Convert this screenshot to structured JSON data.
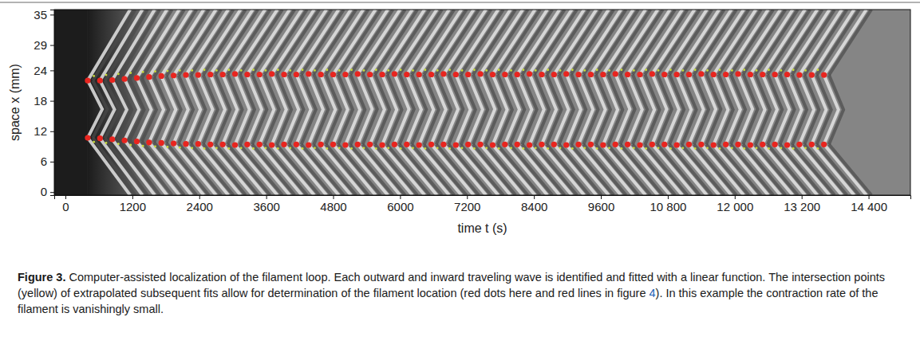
{
  "chart_data": {
    "type": "scatter",
    "x_label": "time t (s)",
    "y_label": "space x (mm)",
    "xlim": [
      -200,
      15150
    ],
    "ylim": [
      -0.6,
      36
    ],
    "xticks": [
      0,
      1200,
      2400,
      3600,
      4800,
      6000,
      7200,
      8400,
      9600,
      {
        "value": 10800,
        "label": "10 800"
      },
      {
        "value": 12000,
        "label": "12 000"
      },
      {
        "value": 13200,
        "label": "13 200"
      },
      {
        "value": 14400,
        "label": "14 400"
      }
    ],
    "yticks": [
      0,
      6,
      12,
      18,
      24,
      29,
      35
    ],
    "grid": false,
    "series": [
      {
        "color": "#e8251f",
        "marker": "circle",
        "x": [
          400,
          620,
          840,
          1060,
          1280,
          1500,
          1720,
          1940,
          2160,
          2380,
          2600,
          2820,
          3040,
          3260,
          3480,
          3700,
          3920,
          4140,
          4360,
          4580,
          4800,
          5020,
          5240,
          5460,
          5680,
          5900,
          6120,
          6340,
          6560,
          6780,
          7000,
          7220,
          7440,
          7660,
          7880,
          8100,
          8320,
          8540,
          8760,
          8980,
          9200,
          9420,
          9640,
          9860,
          10080,
          10300,
          10520,
          10740,
          10960,
          11180,
          11400,
          11620,
          11840,
          12060,
          12280,
          12500,
          12720,
          12940,
          13160,
          13380,
          13600
        ],
        "values": [
          22.0,
          22.0,
          22.1,
          22.3,
          22.5,
          22.7,
          22.9,
          23.0,
          23.1,
          23.1,
          23.2,
          23.2,
          23.3,
          23.2,
          23.2,
          23.3,
          23.2,
          23.2,
          23.3,
          23.2,
          23.2,
          23.2,
          23.3,
          23.2,
          23.2,
          23.3,
          23.2,
          23.2,
          23.2,
          23.3,
          23.2,
          23.2,
          23.3,
          23.2,
          23.2,
          23.2,
          23.3,
          23.2,
          23.2,
          23.3,
          23.2,
          23.2,
          23.2,
          23.3,
          23.2,
          23.2,
          23.3,
          23.2,
          23.2,
          23.2,
          23.3,
          23.2,
          23.2,
          23.3,
          23.2,
          23.2,
          23.2,
          23.2,
          23.1,
          23.1,
          23.1
        ]
      },
      {
        "color": "#e8251f",
        "marker": "circle",
        "x": [
          400,
          620,
          840,
          1060,
          1280,
          1500,
          1720,
          1940,
          2160,
          2380,
          2600,
          2820,
          3040,
          3260,
          3480,
          3700,
          3920,
          4140,
          4360,
          4580,
          4800,
          5020,
          5240,
          5460,
          5680,
          5900,
          6120,
          6340,
          6560,
          6780,
          7000,
          7220,
          7440,
          7660,
          7880,
          8100,
          8320,
          8540,
          8760,
          8980,
          9200,
          9420,
          9640,
          9860,
          10080,
          10300,
          10520,
          10740,
          10960,
          11180,
          11400,
          11620,
          11840,
          12060,
          12280,
          12500,
          12720,
          12940,
          13160,
          13380,
          13600
        ],
        "values": [
          10.7,
          10.6,
          10.4,
          10.2,
          10.0,
          9.8,
          9.7,
          9.6,
          9.5,
          9.5,
          9.4,
          9.4,
          9.3,
          9.4,
          9.4,
          9.3,
          9.4,
          9.4,
          9.3,
          9.4,
          9.4,
          9.3,
          9.4,
          9.4,
          9.3,
          9.4,
          9.4,
          9.3,
          9.4,
          9.4,
          9.3,
          9.4,
          9.4,
          9.3,
          9.4,
          9.4,
          9.3,
          9.4,
          9.4,
          9.3,
          9.4,
          9.4,
          9.3,
          9.4,
          9.4,
          9.3,
          9.4,
          9.4,
          9.3,
          9.4,
          9.4,
          9.3,
          9.4,
          9.4,
          9.3,
          9.4,
          9.4,
          9.3,
          9.4,
          9.4,
          9.4
        ]
      },
      {
        "color": "#c9dc3c",
        "marker": "point",
        "x": [
          510,
          730,
          950,
          1170,
          1390,
          1610,
          1830,
          2050,
          2270,
          2490,
          2710,
          2930,
          3150,
          3370,
          3590,
          3810,
          4030,
          4250,
          4470,
          4690,
          4910,
          5130,
          5350,
          5570,
          5790,
          6010,
          6230,
          6450,
          6670,
          6890,
          7110,
          7330,
          7550,
          7770,
          7990,
          8210,
          8430,
          8650,
          8870,
          9090,
          9310,
          9530,
          9750,
          9970,
          10190,
          10410,
          10630,
          10850,
          11070,
          11290,
          11510,
          11730,
          11950,
          12170,
          12390,
          12610,
          12830,
          13050,
          13270,
          13490
        ],
        "values": [
          22.9,
          23.1,
          23.3,
          23.5,
          23.7,
          23.8,
          23.9,
          24.0,
          24.0,
          24.1,
          24.0,
          24.1,
          24.0,
          24.1,
          24.0,
          24.1,
          24.0,
          24.1,
          24.0,
          24.1,
          24.0,
          24.1,
          24.0,
          24.1,
          24.0,
          24.1,
          24.0,
          24.1,
          24.0,
          24.1,
          24.0,
          24.1,
          24.0,
          24.1,
          24.0,
          24.1,
          24.0,
          24.1,
          24.0,
          24.1,
          24.0,
          24.1,
          24.0,
          24.1,
          24.0,
          24.1,
          24.0,
          24.1,
          24.0,
          24.1,
          24.0,
          24.1,
          24.0,
          24.1,
          24.0,
          24.1,
          24.0,
          24.1,
          24.0,
          24.1
        ]
      },
      {
        "color": "#c9dc3c",
        "marker": "point",
        "x": [
          510,
          730,
          950,
          1170,
          1390,
          1610,
          1830,
          2050,
          2270,
          2490,
          2710,
          2930,
          3150,
          3370,
          3590,
          3810,
          4030,
          4250,
          4470,
          4690,
          4910,
          5130,
          5350,
          5570,
          5790,
          6010,
          6230,
          6450,
          6670,
          6890,
          7110,
          7330,
          7550,
          7770,
          7990,
          8210,
          8430,
          8650,
          8870,
          9090,
          9310,
          9530,
          9750,
          9970,
          10190,
          10410,
          10630,
          10850,
          11070,
          11290,
          11510,
          11730,
          11950,
          12170,
          12390,
          12610,
          12830,
          13050,
          13270,
          13490
        ],
        "values": [
          9.9,
          9.7,
          9.5,
          9.3,
          9.1,
          9.0,
          8.9,
          8.8,
          8.7,
          8.6,
          8.7,
          8.6,
          8.7,
          8.6,
          8.7,
          8.6,
          8.7,
          8.6,
          8.7,
          8.6,
          8.7,
          8.6,
          8.7,
          8.6,
          8.7,
          8.6,
          8.7,
          8.6,
          8.7,
          8.6,
          8.7,
          8.6,
          8.7,
          8.6,
          8.7,
          8.6,
          8.7,
          8.6,
          8.7,
          8.6,
          8.7,
          8.6,
          8.7,
          8.6,
          8.7,
          8.6,
          8.7,
          8.6,
          8.7,
          8.6,
          8.7,
          8.6,
          8.7,
          8.6,
          8.7,
          8.6,
          8.7,
          8.6,
          8.7,
          8.6
        ]
      }
    ]
  },
  "caption": {
    "label": "Figure 3.",
    "text_before": "Computer-assisted localization of the filament loop. Each outward and inward traveling wave is identified and fitted with a linear function. The intersection points (yellow) of extrapolated subsequent fits allow for determination of the filament location (red dots here and red lines in figure ",
    "link": "4",
    "text_after": "). In this example the contraction rate of the filament is vanishingly small."
  }
}
